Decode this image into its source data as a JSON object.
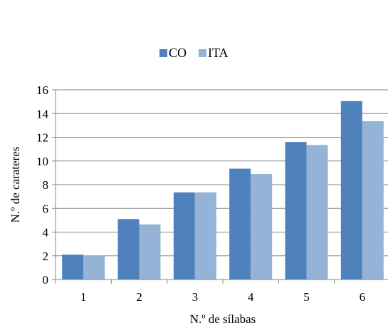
{
  "chart_data": {
    "type": "bar",
    "categories": [
      "1",
      "2",
      "3",
      "4",
      "5",
      "6"
    ],
    "series": [
      {
        "name": "CO",
        "values": [
          2.1,
          5.1,
          7.35,
          9.35,
          11.6,
          15.05
        ],
        "color": "#4f81bd"
      },
      {
        "name": "ITA",
        "values": [
          2.0,
          4.65,
          7.35,
          8.9,
          11.35,
          13.35
        ],
        "color": "#95b3d7"
      }
    ],
    "xlabel": "N.º de sílabas",
    "ylabel": "N.º de carateres",
    "ylim": [
      0,
      16
    ],
    "yticks": [
      "0",
      "2",
      "4",
      "6",
      "8",
      "10",
      "12",
      "14",
      "16"
    ],
    "grid": true,
    "legend_position": "top"
  }
}
